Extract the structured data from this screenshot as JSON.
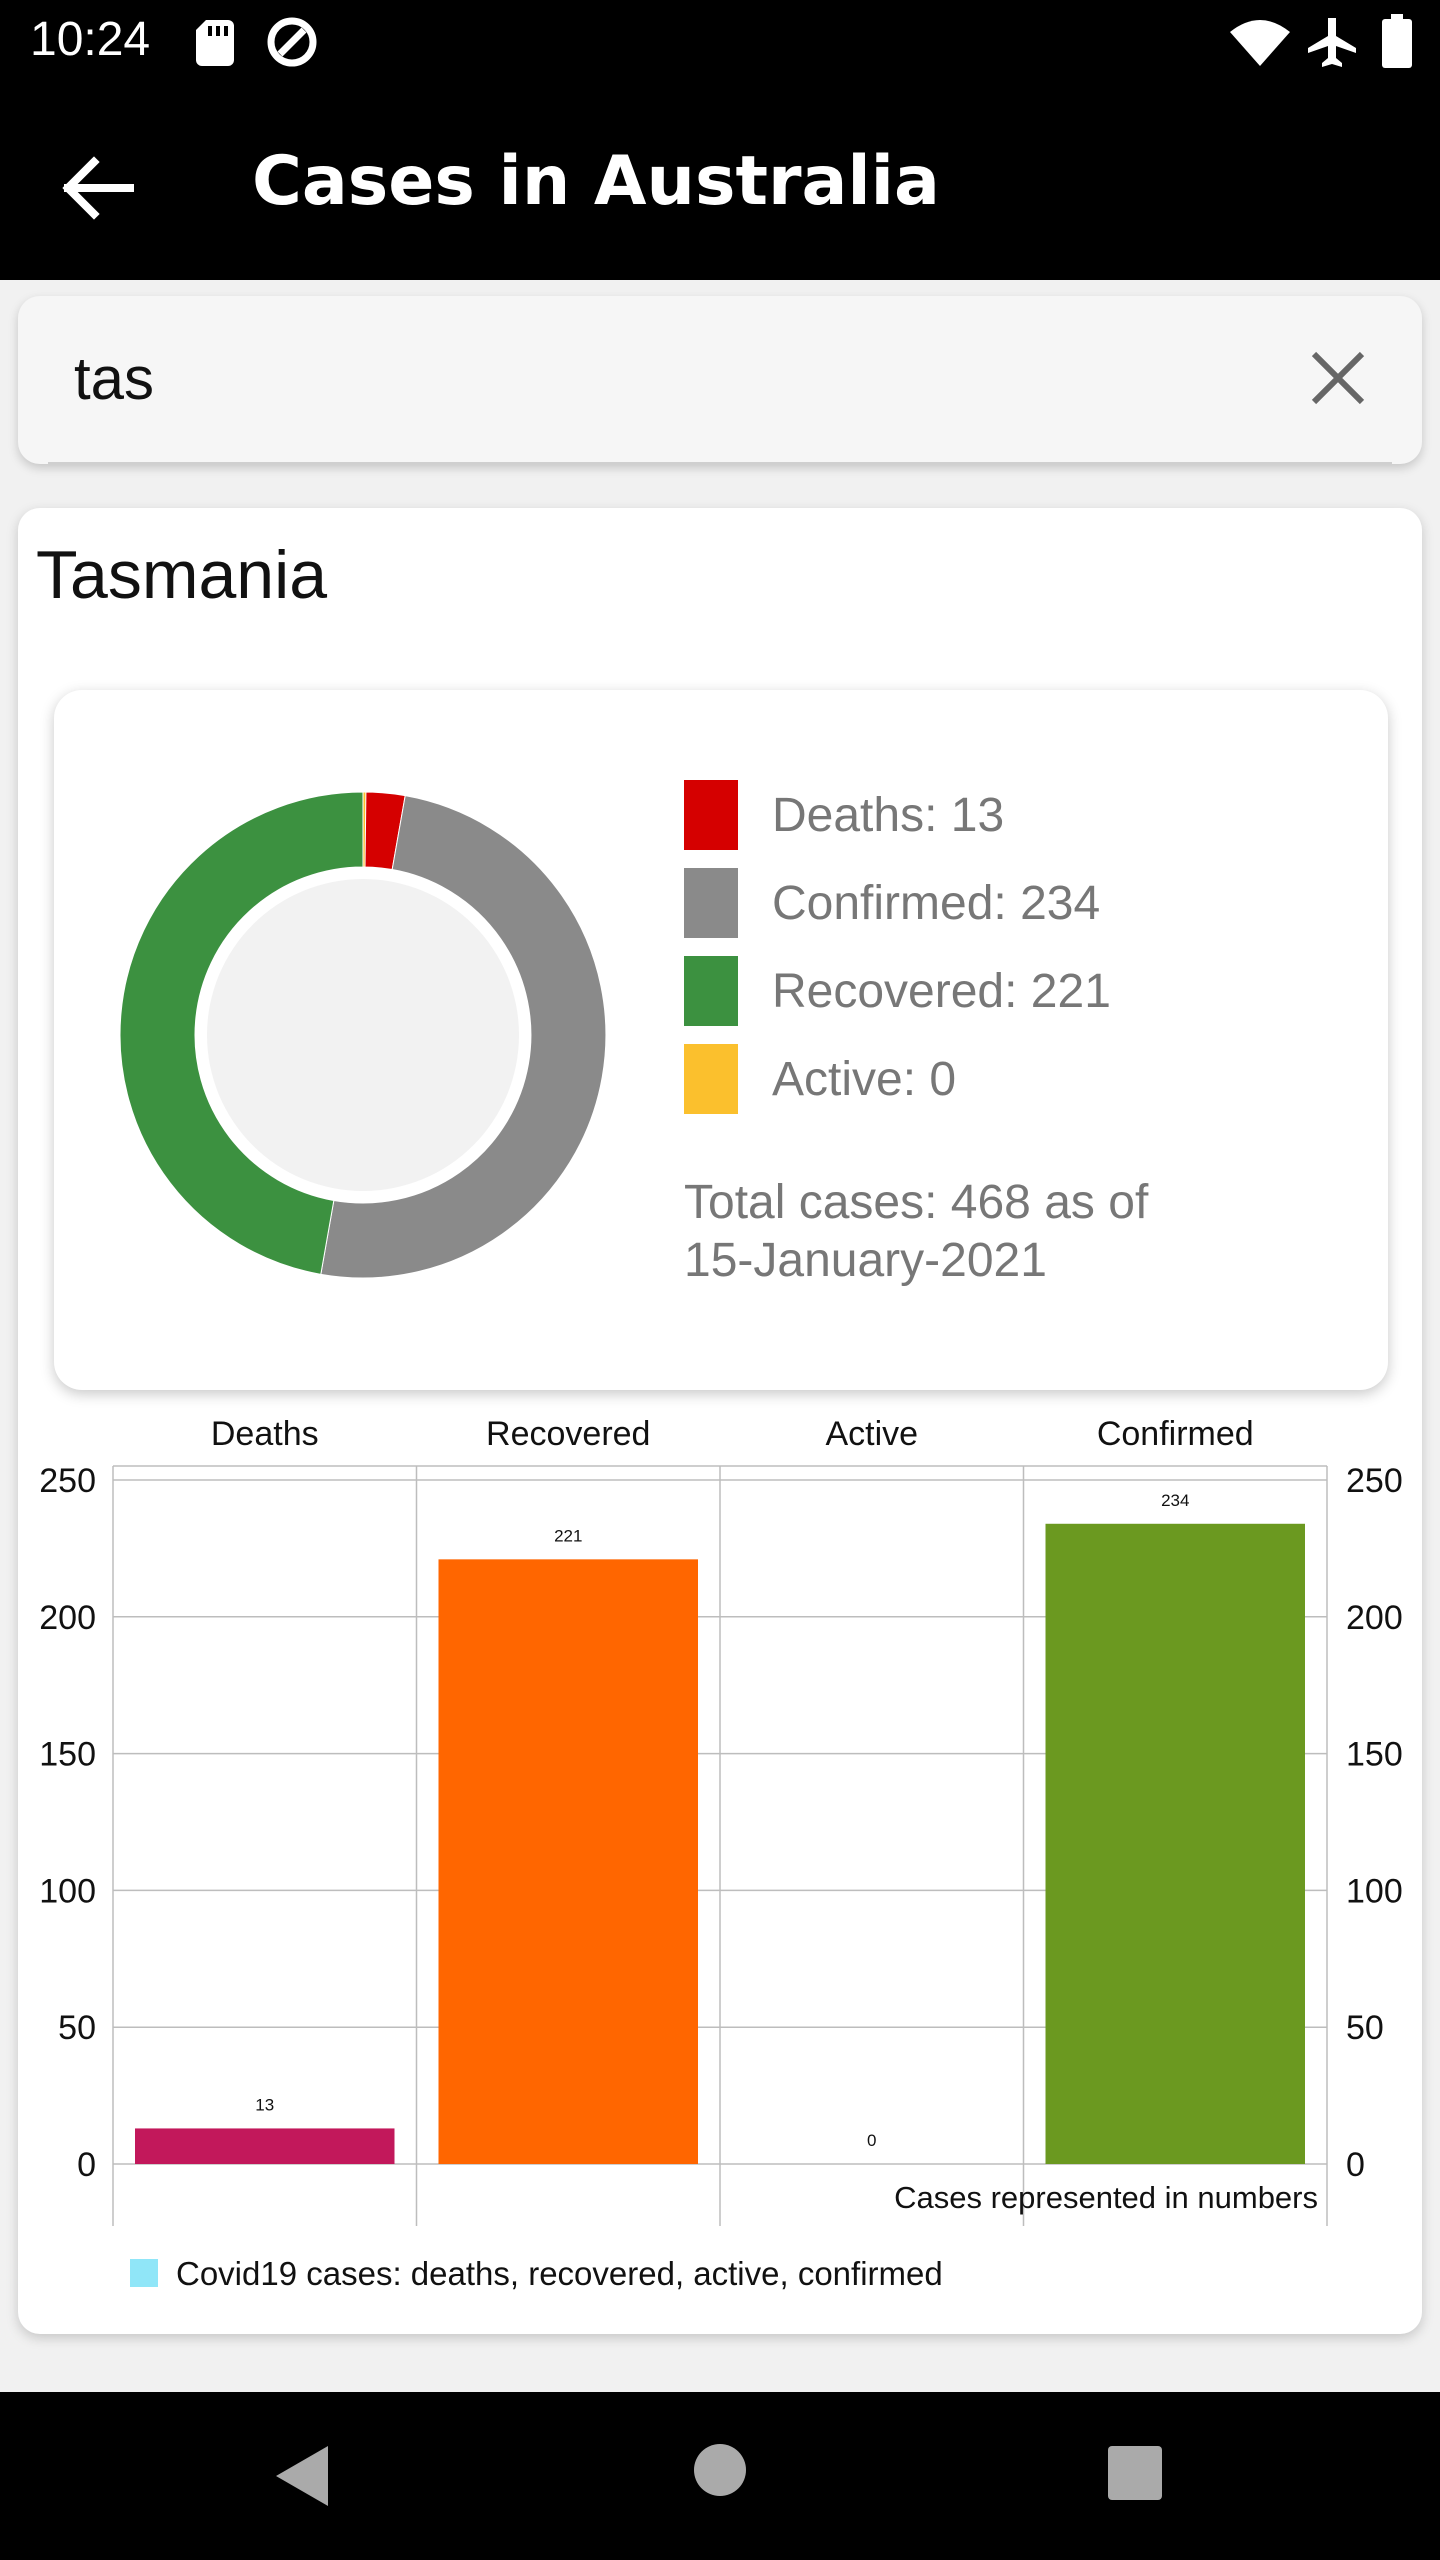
{
  "status_bar": {
    "time": "10:24",
    "left_icons": [
      "sd-card-icon",
      "data-saver-icon"
    ],
    "right_icons": [
      "wifi-icon",
      "airplane-icon",
      "battery-icon"
    ]
  },
  "app_bar": {
    "title": "Cases in Australia",
    "back_icon": "arrow-left-icon"
  },
  "search": {
    "value": "tas",
    "clear_icon": "close-icon"
  },
  "region": {
    "name": "Tasmania"
  },
  "pie": {
    "legend": [
      {
        "label": "Deaths: 13",
        "color": "#d50000"
      },
      {
        "label": "Confirmed: 234",
        "color": "#8a8a8a"
      },
      {
        "label": "Recovered: 221",
        "color": "#3c9140"
      },
      {
        "label": "Active: 0",
        "color": "#fbc02d"
      }
    ],
    "total_line1": "Total cases: 468 as of",
    "total_line2": "15-January-2021"
  },
  "chart_data": [
    {
      "type": "pie",
      "variant": "donut",
      "categories": [
        "Deaths",
        "Confirmed",
        "Recovered",
        "Active"
      ],
      "values": [
        13,
        234,
        221,
        0
      ],
      "colors": [
        "#d50000",
        "#8a8a8a",
        "#3c9140",
        "#fbc02d"
      ],
      "total": 468
    },
    {
      "type": "bar",
      "categories": [
        "Deaths",
        "Recovered",
        "Active",
        "Confirmed"
      ],
      "values": [
        13,
        221,
        0,
        234
      ],
      "colors": [
        "#c2185b",
        "#ff6600",
        "#e0e0e0",
        "#6b9920"
      ],
      "ylim": [
        0,
        250
      ],
      "yticks": [
        "0",
        "50",
        "100",
        "150",
        "200",
        "250"
      ],
      "xlabel": "Cases represented in numbers",
      "legend": {
        "label": "Covid19 cases: deaths, recovered, active, confirmed",
        "color": "#90e6f8",
        "position": "bottom-left"
      },
      "grid": true
    }
  ],
  "nav_bar": {
    "icons": [
      "nav-back-icon",
      "nav-home-icon",
      "nav-recents-icon"
    ]
  }
}
